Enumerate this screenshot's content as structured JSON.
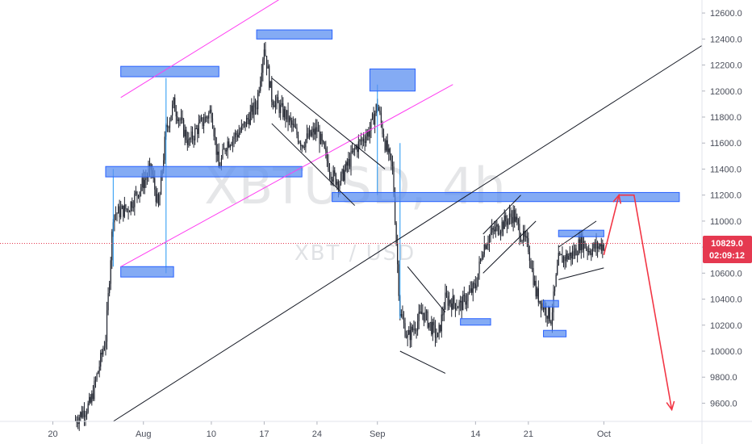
{
  "watermark": {
    "symbol": "XBTUSD, 4h",
    "pair": "XBT / USD"
  },
  "price_badge": {
    "price": "10829.0",
    "countdown": "02:09:12",
    "color": "#e53950"
  },
  "colors": {
    "candle": "#1e222d",
    "zone_fill": "#5b8ff0",
    "zone_stroke": "#2962ff",
    "channel_magenta": "#ff3df1",
    "trend_black": "#131722",
    "arrow_red": "#f23645",
    "wick_blue": "#2196f3",
    "price_line": "#e53950"
  },
  "chart_data": {
    "type": "candlestick",
    "symbol": "XBTUSD",
    "timeframe": "4h",
    "x_tick_labels": [
      "20",
      "Aug",
      "10",
      "17",
      "24",
      "Sep",
      "14",
      "21",
      "Oct"
    ],
    "x_ticks": [
      "2020-07-20",
      "2020-08-01",
      "2020-08-10",
      "2020-08-17",
      "2020-08-24",
      "2020-09-01",
      "2020-09-14",
      "2020-09-21",
      "2020-10-01"
    ],
    "xlim": [
      "2020-07-13",
      "2020-10-14"
    ],
    "y_ticks": [
      9600,
      9800,
      10000,
      10200,
      10400,
      10600,
      10800,
      11000,
      11200,
      11400,
      11600,
      11800,
      12000,
      12200,
      12400,
      12600
    ],
    "y_tick_labels": [
      "9600.0",
      "9800.0",
      "10000.0",
      "10200.0",
      "10400.0",
      "10600.0",
      "10800.0",
      "11000.0",
      "11200.0",
      "11400.0",
      "11600.0",
      "11800.0",
      "12000.0",
      "12200.0",
      "12400.0",
      "12600.0"
    ],
    "ylim": [
      9460,
      12700
    ],
    "current_price": 10829.0,
    "price_path": [
      [
        "2020-07-23",
        9470
      ],
      [
        "2020-07-25",
        9600
      ],
      [
        "2020-07-27",
        10100
      ],
      [
        "2020-07-28",
        11050
      ],
      [
        "2020-07-30",
        11100
      ],
      [
        "2020-08-01",
        11300
      ],
      [
        "2020-08-02",
        11400
      ],
      [
        "2020-08-03",
        11100
      ],
      [
        "2020-08-04",
        11700
      ],
      [
        "2020-08-05",
        11900
      ],
      [
        "2020-08-07",
        11600
      ],
      [
        "2020-08-08",
        11700
      ],
      [
        "2020-08-10",
        11850
      ],
      [
        "2020-08-11",
        11400
      ],
      [
        "2020-08-12",
        11600
      ],
      [
        "2020-08-14",
        11700
      ],
      [
        "2020-08-16",
        11900
      ],
      [
        "2020-08-17",
        12350
      ],
      [
        "2020-08-18",
        11950
      ],
      [
        "2020-08-20",
        11800
      ],
      [
        "2020-08-22",
        11600
      ],
      [
        "2020-08-24",
        11700
      ],
      [
        "2020-08-26",
        11350
      ],
      [
        "2020-08-27",
        11300
      ],
      [
        "2020-08-29",
        11550
      ],
      [
        "2020-08-31",
        11700
      ],
      [
        "2020-09-01",
        11900
      ],
      [
        "2020-09-02",
        11600
      ],
      [
        "2020-09-03",
        11400
      ],
      [
        "2020-09-04",
        10300
      ],
      [
        "2020-09-05",
        10100
      ],
      [
        "2020-09-07",
        10300
      ],
      [
        "2020-09-09",
        10100
      ],
      [
        "2020-09-10",
        10400
      ],
      [
        "2020-09-12",
        10350
      ],
      [
        "2020-09-14",
        10500
      ],
      [
        "2020-09-15",
        10800
      ],
      [
        "2020-09-16",
        10900
      ],
      [
        "2020-09-18",
        11000
      ],
      [
        "2020-09-19",
        11050
      ],
      [
        "2020-09-20",
        10900
      ],
      [
        "2020-09-21",
        10800
      ],
      [
        "2020-09-22",
        10450
      ],
      [
        "2020-09-23",
        10350
      ],
      [
        "2020-09-24",
        10250
      ],
      [
        "2020-09-25",
        10700
      ],
      [
        "2020-09-27",
        10750
      ],
      [
        "2020-09-28",
        10850
      ],
      [
        "2020-09-29",
        10780
      ],
      [
        "2020-10-01",
        10820
      ]
    ],
    "zones": [
      {
        "start": "2020-07-29",
        "end": "2020-08-11",
        "low": 12110,
        "high": 12190
      },
      {
        "start": "2020-08-16",
        "end": "2020-08-26",
        "low": 12400,
        "high": 12470
      },
      {
        "start": "2020-08-31",
        "end": "2020-09-06",
        "low": 12000,
        "high": 12170
      },
      {
        "start": "2020-07-27",
        "end": "2020-08-22",
        "low": 11340,
        "high": 11420
      },
      {
        "start": "2020-07-29",
        "end": "2020-08-05",
        "low": 10570,
        "high": 10650
      },
      {
        "start": "2020-08-26",
        "end": "2020-10-11",
        "low": 11150,
        "high": 11220
      },
      {
        "start": "2020-09-12",
        "end": "2020-09-16",
        "low": 10200,
        "high": 10250
      },
      {
        "start": "2020-09-23",
        "end": "2020-09-25",
        "low": 10340,
        "high": 10390
      },
      {
        "start": "2020-09-23",
        "end": "2020-09-26",
        "low": 10110,
        "high": 10160
      },
      {
        "start": "2020-09-25",
        "end": "2020-10-01",
        "low": 10880,
        "high": 10930
      }
    ],
    "lines": [
      {
        "kind": "channel-upper",
        "from": [
          "2020-07-29",
          11950
        ],
        "to": [
          "2020-08-20",
          12740
        ]
      },
      {
        "kind": "channel-lower",
        "from": [
          "2020-07-29",
          10650
        ],
        "to": [
          "2020-09-11",
          12050
        ]
      },
      {
        "kind": "trendline",
        "from": [
          "2020-07-28",
          9460
        ],
        "to": [
          "2020-10-14",
          12350
        ]
      },
      {
        "kind": "wedge-upper",
        "from": [
          "2020-08-18",
          12100
        ],
        "to": [
          "2020-09-02",
          11400
        ]
      },
      {
        "kind": "wedge-lower",
        "from": [
          "2020-08-18",
          11750
        ],
        "to": [
          "2020-08-29",
          11120
        ]
      },
      {
        "kind": "wedge-upper",
        "from": [
          "2020-09-05",
          10650
        ],
        "to": [
          "2020-09-10",
          10300
        ]
      },
      {
        "kind": "wedge-lower",
        "from": [
          "2020-09-04",
          10000
        ],
        "to": [
          "2020-09-10",
          9830
        ]
      },
      {
        "kind": "flag-upper",
        "from": [
          "2020-09-15",
          10900
        ],
        "to": [
          "2020-09-20",
          11200
        ]
      },
      {
        "kind": "flag-lower",
        "from": [
          "2020-09-15",
          10600
        ],
        "to": [
          "2020-09-22",
          11000
        ]
      },
      {
        "kind": "wedge-upper",
        "from": [
          "2020-09-25",
          10800
        ],
        "to": [
          "2020-09-30",
          11000
        ]
      },
      {
        "kind": "wedge-lower",
        "from": [
          "2020-09-25",
          10550
        ],
        "to": [
          "2020-10-01",
          10640
        ]
      }
    ],
    "projection": [
      [
        "2020-10-01",
        10740
      ],
      [
        "2020-10-03",
        11200
      ],
      [
        "2020-10-05",
        11200
      ],
      [
        "2020-10-10",
        9550
      ]
    ]
  }
}
